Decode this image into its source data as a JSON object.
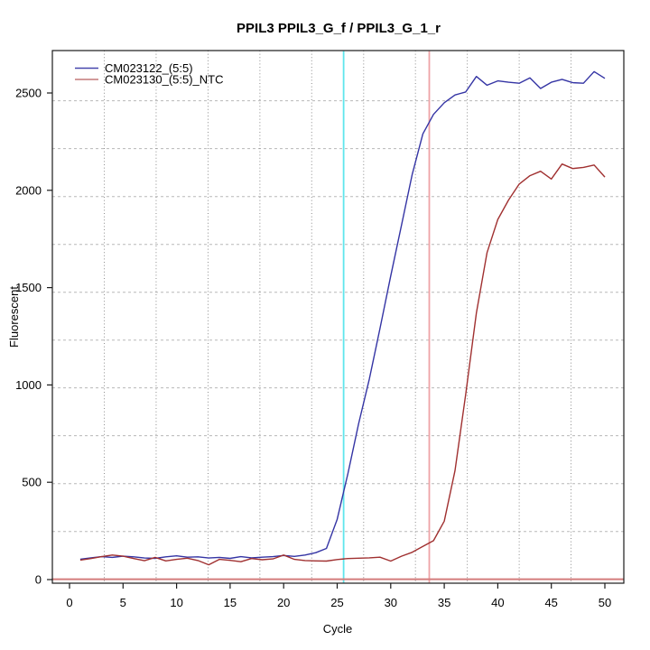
{
  "chart_data": {
    "type": "line",
    "title": "PPIL3  PPIL3_G_f / PPIL3_G_1_r",
    "xlabel": "Cycle",
    "ylabel": "Fluorescent",
    "xlim": [
      -1.6,
      51.8
    ],
    "ylim": [
      -20,
      2718
    ],
    "x_ticks": [
      0,
      5,
      10,
      15,
      20,
      25,
      30,
      35,
      40,
      45,
      50
    ],
    "y_ticks": [
      0,
      500,
      1000,
      1500,
      2000,
      2500
    ],
    "grid": {
      "h_style": "dashed",
      "v_style": "dotted",
      "h_color": "#b8b8b8",
      "v_color": "#8c8c8c",
      "h_values": [
        2460,
        2214,
        1968,
        1722,
        1476,
        1230,
        985,
        739,
        493,
        247
      ],
      "v_values": [
        3.25,
        8.09,
        12.94,
        17.78,
        22.62,
        27.47,
        32.31,
        37.15,
        42.0,
        46.84
      ]
    },
    "cycles": [
      1,
      2,
      3,
      4,
      5,
      6,
      7,
      8,
      9,
      10,
      11,
      12,
      13,
      14,
      15,
      16,
      17,
      18,
      19,
      20,
      21,
      22,
      23,
      24,
      25,
      26,
      27,
      28,
      29,
      30,
      31,
      32,
      33,
      34,
      35,
      36,
      37,
      38,
      39,
      40,
      41,
      42,
      43,
      44,
      45,
      46,
      47,
      48,
      49,
      50
    ],
    "series": [
      {
        "name": "CM023122_(5:5)",
        "color": "#3434a4",
        "values": [
          105,
          112,
          118,
          114,
          120,
          117,
          111,
          109,
          117,
          122,
          115,
          117,
          111,
          114,
          109,
          118,
          112,
          115,
          118,
          124,
          119,
          126,
          138,
          160,
          310,
          545,
          800,
          1030,
          1290,
          1560,
          1820,
          2080,
          2290,
          2390,
          2450,
          2490,
          2505,
          2585,
          2540,
          2562,
          2555,
          2550,
          2578,
          2523,
          2555,
          2570,
          2553,
          2550,
          2610,
          2575
        ]
      },
      {
        "name": "CM023130_(5:5)_NTC",
        "color": "#a03030",
        "values": [
          100,
          108,
          118,
          126,
          120,
          108,
          97,
          114,
          96,
          104,
          110,
          98,
          76,
          104,
          99,
          92,
          108,
          102,
          106,
          126,
          104,
          98,
          96,
          95,
          103,
          108,
          110,
          112,
          115,
          95,
          120,
          140,
          170,
          200,
          300,
          560,
          950,
          1370,
          1680,
          1850,
          1950,
          2032,
          2075,
          2098,
          2058,
          2135,
          2112,
          2118,
          2130,
          2068
        ]
      }
    ],
    "legend": {
      "position": "top-left",
      "entries": [
        {
          "label": "CM023122_(5:5)",
          "swatch_color": "#4646ac"
        },
        {
          "label": "CM023130_(5:5)_NTC",
          "swatch_color": "#c47878"
        }
      ]
    },
    "markers": {
      "vertical_lines": [
        {
          "x": 25.6,
          "color": "#5fe6ec",
          "name": "ct-line-sample"
        },
        {
          "x": 33.6,
          "color": "#efa3a6",
          "name": "ct-line-ntc"
        }
      ],
      "horizontal_lines": [
        {
          "y": 2,
          "color": "#d47c7c",
          "name": "threshold-line"
        }
      ]
    }
  }
}
